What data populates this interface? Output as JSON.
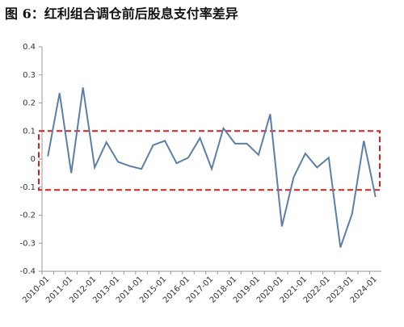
{
  "chart_data": {
    "type": "line",
    "title": "图 6：红利组合调仓前后股息支付率差异",
    "categories": [
      "2010-01",
      null,
      "2011-01",
      null,
      "2012-01",
      null,
      "2013-01",
      null,
      "2014-01",
      null,
      "2015-01",
      null,
      "2016-01",
      null,
      "2017-01",
      null,
      "2018-01",
      null,
      "2019-01",
      null,
      "2020-01",
      null,
      "2021-01",
      null,
      "2022-01",
      null,
      "2023-01",
      null,
      "2024-01"
    ],
    "series": [
      {
        "name": "股息支付率差异",
        "color": "#5b7fa8",
        "values": [
          0.01,
          0.235,
          -0.05,
          0.255,
          -0.03,
          0.06,
          -0.01,
          -0.025,
          -0.035,
          0.05,
          0.065,
          -0.015,
          0.005,
          0.075,
          -0.035,
          0.11,
          0.055,
          0.055,
          0.015,
          0.16,
          -0.24,
          -0.065,
          0.02,
          -0.03,
          0.005,
          -0.315,
          -0.195,
          0.065,
          -0.135
        ]
      }
    ],
    "band": [
      -0.11,
      0.1
    ],
    "band_color": "#d42020",
    "ylim": [
      -0.4,
      0.4
    ],
    "yticks": [
      -0.4,
      -0.3,
      -0.2,
      -0.1,
      0,
      0.1,
      0.2,
      0.3,
      0.4
    ],
    "grid": false
  }
}
